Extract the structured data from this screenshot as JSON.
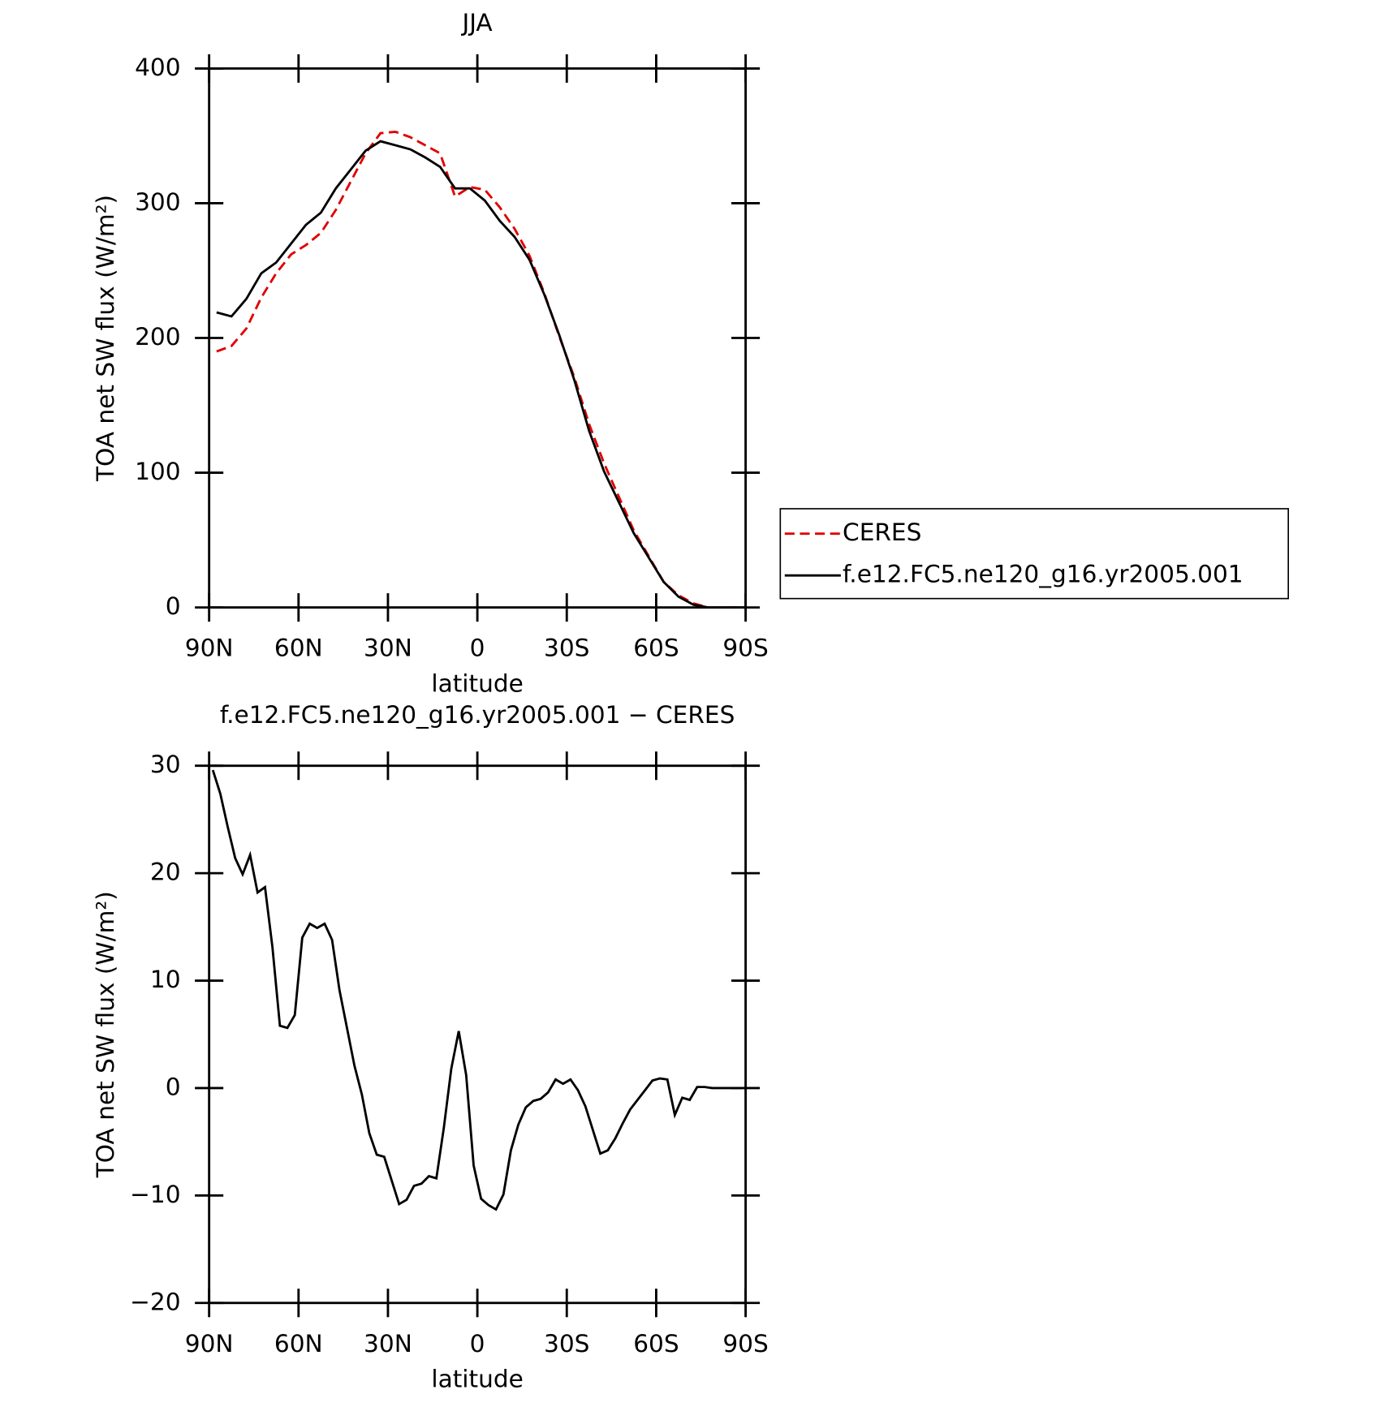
{
  "chart_data": [
    {
      "type": "line",
      "title": "JJA",
      "xlabel": "latitude",
      "ylabel": "TOA net SW flux (W/m²)",
      "xlim": [
        90,
        -90
      ],
      "xticks": [
        {
          "value": 90,
          "label": "90N"
        },
        {
          "value": 60,
          "label": "60N"
        },
        {
          "value": 30,
          "label": "30N"
        },
        0,
        {
          "value": -30,
          "label": "30S"
        },
        {
          "value": -60,
          "label": "60S"
        },
        {
          "value": -90,
          "label": "90S"
        }
      ],
      "ylim": [
        0,
        400
      ],
      "yticks": [
        0,
        100,
        200,
        300,
        400
      ],
      "legend": "right",
      "x": [
        87.5,
        82.5,
        77.5,
        72.5,
        67.5,
        62.5,
        57.5,
        52.5,
        47.5,
        42.5,
        37.5,
        32.5,
        27.5,
        22.5,
        17.5,
        12.5,
        7.5,
        2.5,
        -2.5,
        -7.5,
        -12.5,
        -17.5,
        -22.5,
        -27.5,
        -32.5,
        -37.5,
        -42.5,
        -47.5,
        -52.5,
        -57.5,
        -62.5,
        -67.5,
        -72.5,
        -77.5,
        -82.5,
        -87.5
      ],
      "series": [
        {
          "name": "CERES",
          "color": "#e00000",
          "dash": true,
          "values": [
            190,
            194,
            207,
            230,
            248,
            262,
            269,
            278,
            295,
            316,
            337,
            352,
            353,
            349,
            343,
            337,
            305,
            312,
            310,
            297,
            281,
            261,
            233,
            201,
            171,
            136,
            107,
            82,
            57,
            38,
            19,
            9,
            3,
            0,
            0,
            0
          ]
        },
        {
          "name": "f.e12.FC5.ne120_g16.yr2005.001",
          "color": "#000000",
          "dash": false,
          "values": [
            219,
            216,
            229,
            248,
            256,
            270,
            284,
            293,
            311,
            325,
            339,
            346,
            343,
            340,
            334,
            327,
            311,
            311,
            302,
            287,
            275,
            258,
            232,
            202,
            169,
            131,
            101,
            78,
            55,
            37,
            19,
            8,
            2,
            0,
            0,
            0
          ]
        }
      ]
    },
    {
      "type": "line",
      "title": "f.e12.FC5.ne120_g16.yr2005.001 − CERES",
      "xlabel": "latitude",
      "ylabel": "TOA net SW flux (W/m²)",
      "xlim": [
        90,
        -90
      ],
      "xticks": [
        {
          "value": 90,
          "label": "90N"
        },
        {
          "value": 60,
          "label": "60N"
        },
        {
          "value": 30,
          "label": "30N"
        },
        0,
        {
          "value": -30,
          "label": "30S"
        },
        {
          "value": -60,
          "label": "60S"
        },
        {
          "value": -90,
          "label": "90S"
        }
      ],
      "ylim": [
        -20,
        30
      ],
      "yticks": [
        {
          "value": -20,
          "label": "−20"
        },
        {
          "value": -10,
          "label": "−10"
        },
        0,
        10,
        20,
        30
      ],
      "x": [
        88.75,
        86.25,
        83.75,
        81.25,
        78.75,
        76.25,
        73.75,
        71.25,
        68.75,
        66.25,
        63.75,
        61.25,
        58.75,
        56.25,
        53.75,
        51.25,
        48.75,
        46.25,
        43.75,
        41.25,
        38.75,
        36.25,
        33.75,
        31.25,
        28.75,
        26.25,
        23.75,
        21.25,
        18.75,
        16.25,
        13.75,
        11.25,
        8.75,
        6.25,
        3.75,
        1.25,
        -1.25,
        -3.75,
        -6.25,
        -8.75,
        -11.25,
        -13.75,
        -16.25,
        -18.75,
        -21.25,
        -23.75,
        -26.25,
        -28.75,
        -31.25,
        -33.75,
        -36.25,
        -38.75,
        -41.25,
        -43.75,
        -46.25,
        -48.75,
        -51.25,
        -53.75,
        -56.25,
        -58.75,
        -61.25,
        -63.75,
        -66.25,
        -68.75,
        -71.25,
        -73.75,
        -76.25,
        -78.75,
        -81.25,
        -83.75,
        -86.25,
        -88.75
      ],
      "series": [
        {
          "color": "#000000",
          "dash": false,
          "values": [
            29.6,
            27.4,
            24.3,
            21.4,
            19.9,
            21.7,
            18.2,
            18.7,
            13.1,
            5.8,
            5.6,
            6.8,
            14.0,
            15.3,
            14.9,
            15.3,
            13.8,
            9.1,
            5.6,
            2.1,
            -0.6,
            -4.2,
            -6.2,
            -6.4,
            -8.6,
            -10.8,
            -10.4,
            -9.1,
            -8.9,
            -8.2,
            -8.4,
            -3.7,
            1.8,
            5.3,
            1.2,
            -7.2,
            -10.3,
            -10.9,
            -11.3,
            -9.9,
            -5.8,
            -3.4,
            -1.8,
            -1.2,
            -1.0,
            -0.4,
            0.8,
            0.4,
            0.8,
            -0.2,
            -1.7,
            -3.9,
            -6.1,
            -5.8,
            -4.7,
            -3.3,
            -2.0,
            -1.1,
            -0.2,
            0.7,
            0.9,
            0.8,
            -2.5,
            -0.9,
            -1.1,
            0.1,
            0.1,
            0,
            0,
            0,
            0,
            0
          ]
        }
      ]
    }
  ]
}
